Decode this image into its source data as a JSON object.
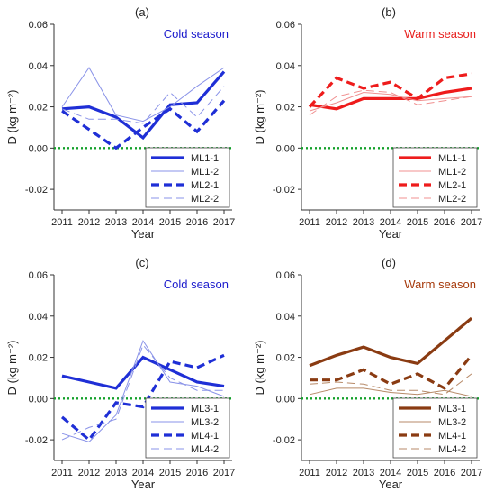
{
  "chart_data": [
    {
      "type": "line",
      "panel_label": "(a)",
      "annotation": "Cold season",
      "annotation_color": "#1a1acc",
      "xlabel": "Year",
      "ylabel": "D (kg m⁻²)",
      "categories": [
        "2011",
        "2012",
        "2013",
        "2014",
        "2015",
        "2016",
        "2017"
      ],
      "ylim": [
        -0.03,
        0.06
      ],
      "yticks": [
        "-0.02",
        "0.00",
        "0.02",
        "0.04",
        "0.06"
      ],
      "zero_line": true,
      "legend_position": "bottom-right",
      "series": [
        {
          "name": "ML1-1",
          "color": "#1f2fd6",
          "style": "thick-solid",
          "values": [
            0.019,
            0.02,
            0.015,
            0.005,
            0.021,
            0.022,
            0.037
          ]
        },
        {
          "name": "ML1-2",
          "color": "#8a93e8",
          "style": "thin-solid",
          "values": [
            0.02,
            0.039,
            0.016,
            0.013,
            0.02,
            0.03,
            0.039
          ]
        },
        {
          "name": "ML2-1",
          "color": "#1f2fd6",
          "style": "thick-dash",
          "values": [
            0.018,
            0.009,
            0.0,
            0.01,
            0.019,
            0.008,
            0.023
          ]
        },
        {
          "name": "ML2-2",
          "color": "#8a93e8",
          "style": "thin-dash",
          "values": [
            0.019,
            0.014,
            0.014,
            0.012,
            0.027,
            0.015,
            0.03
          ]
        }
      ]
    },
    {
      "type": "line",
      "panel_label": "(b)",
      "annotation": "Warm season",
      "annotation_color": "#e8201e",
      "xlabel": "Year",
      "ylabel": "D (kg m⁻²)",
      "categories": [
        "2011",
        "2012",
        "2013",
        "2014",
        "2015",
        "2016",
        "2017"
      ],
      "ylim": [
        -0.03,
        0.06
      ],
      "yticks": [
        "-0.02",
        "0.00",
        "0.02",
        "0.04",
        "0.06"
      ],
      "zero_line": true,
      "legend_position": "bottom-right",
      "series": [
        {
          "name": "ML1-1",
          "color": "#ee1c1c",
          "style": "thick-solid",
          "values": [
            0.021,
            0.019,
            0.024,
            0.024,
            0.024,
            0.027,
            0.029
          ]
        },
        {
          "name": "ML1-2",
          "color": "#f09090",
          "style": "thin-solid",
          "values": [
            0.018,
            0.022,
            0.027,
            0.026,
            0.023,
            0.024,
            0.025
          ]
        },
        {
          "name": "ML2-1",
          "color": "#ee1c1c",
          "style": "thick-dash",
          "values": [
            0.02,
            0.034,
            0.029,
            0.032,
            0.024,
            0.034,
            0.036
          ]
        },
        {
          "name": "ML2-2",
          "color": "#f09090",
          "style": "thin-dash",
          "values": [
            0.016,
            0.025,
            0.028,
            0.027,
            0.021,
            0.023,
            0.025
          ]
        }
      ]
    },
    {
      "type": "line",
      "panel_label": "(c)",
      "annotation": "Cold season",
      "annotation_color": "#1a1acc",
      "xlabel": "Year",
      "ylabel": "D (kg m⁻²)",
      "categories": [
        "2011",
        "2012",
        "2013",
        "2014",
        "2015",
        "2016",
        "2017"
      ],
      "ylim": [
        -0.03,
        0.06
      ],
      "yticks": [
        "-0.02",
        "0.00",
        "0.02",
        "0.04",
        "0.06"
      ],
      "zero_line": true,
      "legend_position": "bottom-right",
      "series": [
        {
          "name": "ML3-1",
          "color": "#1f2fd6",
          "style": "thick-solid",
          "values": [
            0.011,
            0.008,
            0.005,
            0.02,
            0.014,
            0.008,
            0.006
          ]
        },
        {
          "name": "ML3-2",
          "color": "#8a93e8",
          "style": "thin-solid",
          "values": [
            -0.017,
            -0.021,
            -0.008,
            0.028,
            0.008,
            0.006,
            0.001
          ]
        },
        {
          "name": "ML4-1",
          "color": "#1f2fd6",
          "style": "thick-dash",
          "values": [
            -0.009,
            -0.02,
            -0.002,
            -0.004,
            0.018,
            0.015,
            0.021
          ]
        },
        {
          "name": "ML4-2",
          "color": "#8a93e8",
          "style": "thin-dash",
          "values": [
            -0.02,
            -0.014,
            -0.01,
            0.026,
            0.01,
            0.004,
            0.004
          ]
        }
      ]
    },
    {
      "type": "line",
      "panel_label": "(d)",
      "annotation": "Warm season",
      "annotation_color": "#a63a0c",
      "xlabel": "Year",
      "ylabel": "D (kg m⁻²)",
      "categories": [
        "2011",
        "2012",
        "2013",
        "2014",
        "2015",
        "2016",
        "2017"
      ],
      "ylim": [
        -0.03,
        0.06
      ],
      "yticks": [
        "-0.02",
        "0.00",
        "0.02",
        "0.04",
        "0.06"
      ],
      "zero_line": true,
      "legend_position": "bottom-right",
      "series": [
        {
          "name": "ML3-1",
          "color": "#8a3b12",
          "style": "thick-solid",
          "values": [
            0.016,
            0.021,
            0.025,
            0.02,
            0.017,
            0.028,
            0.039
          ]
        },
        {
          "name": "ML3-2",
          "color": "#b78a68",
          "style": "thin-solid",
          "values": [
            0.002,
            0.005,
            0.005,
            0.003,
            0.002,
            0.004,
            0.001
          ]
        },
        {
          "name": "ML4-1",
          "color": "#8a3b12",
          "style": "thick-dash",
          "values": [
            0.009,
            0.009,
            0.014,
            0.007,
            0.012,
            0.005,
            0.021
          ]
        },
        {
          "name": "ML4-2",
          "color": "#b78a68",
          "style": "thin-dash",
          "values": [
            0.007,
            0.008,
            0.007,
            0.004,
            0.004,
            0.002,
            0.012
          ]
        }
      ]
    }
  ]
}
